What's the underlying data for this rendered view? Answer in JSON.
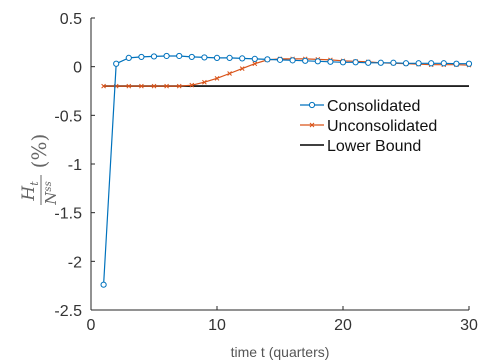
{
  "chart_data": {
    "type": "line",
    "title": "",
    "xlabel": "time t (quarters)",
    "ylabel": "H_t / N^ss (%)",
    "ylabel_parts": {
      "numerator": "H",
      "numerator_sub": "t",
      "denominator": "N",
      "denominator_sup": "ss",
      "unit": "(%)"
    },
    "xlim": [
      0,
      30
    ],
    "ylim": [
      -2.5,
      0.5
    ],
    "xticks": [
      0,
      10,
      20,
      30
    ],
    "yticks": [
      -2.5,
      -2,
      -1.5,
      -1,
      -0.5,
      0,
      0.5
    ],
    "xtick_labels": [
      "0",
      "10",
      "20",
      "30"
    ],
    "ytick_labels": [
      "-2.5",
      "-2",
      "-1.5",
      "-1",
      "-0.5",
      "0",
      "0.5"
    ],
    "grid": false,
    "legend_position": "right",
    "x": [
      1,
      2,
      3,
      4,
      5,
      6,
      7,
      8,
      9,
      10,
      11,
      12,
      13,
      14,
      15,
      16,
      17,
      18,
      19,
      20,
      21,
      22,
      23,
      24,
      25,
      26,
      27,
      28,
      29,
      30
    ],
    "series": [
      {
        "name": "Consolidated",
        "color": "#0072BD",
        "marker": "circle",
        "values": [
          -2.24,
          0.03,
          0.09,
          0.1,
          0.105,
          0.11,
          0.11,
          0.1,
          0.095,
          0.09,
          0.09,
          0.085,
          0.08,
          0.075,
          0.07,
          0.065,
          0.06,
          0.055,
          0.05,
          0.045,
          0.045,
          0.04,
          0.04,
          0.04,
          0.035,
          0.035,
          0.035,
          0.035,
          0.03,
          0.03
        ]
      },
      {
        "name": "Unconsolidated",
        "color": "#D95319",
        "marker": "x",
        "values": [
          -0.2,
          -0.2,
          -0.2,
          -0.2,
          -0.2,
          -0.2,
          -0.2,
          -0.19,
          -0.16,
          -0.12,
          -0.07,
          -0.02,
          0.03,
          0.07,
          0.08,
          0.08,
          0.08,
          0.075,
          0.07,
          0.06,
          0.055,
          0.05,
          0.04,
          0.035,
          0.03,
          0.025,
          0.02,
          0.02,
          0.02,
          0.015
        ]
      },
      {
        "name": "Lower Bound",
        "color": "#000000",
        "marker": "none",
        "values": [
          -0.2,
          -0.2,
          -0.2,
          -0.2,
          -0.2,
          -0.2,
          -0.2,
          -0.2,
          -0.2,
          -0.2,
          -0.2,
          -0.2,
          -0.2,
          -0.2,
          -0.2,
          -0.2,
          -0.2,
          -0.2,
          -0.2,
          -0.2,
          -0.2,
          -0.2,
          -0.2,
          -0.2,
          -0.2,
          -0.2,
          -0.2,
          -0.2,
          -0.2,
          -0.2
        ]
      }
    ]
  }
}
